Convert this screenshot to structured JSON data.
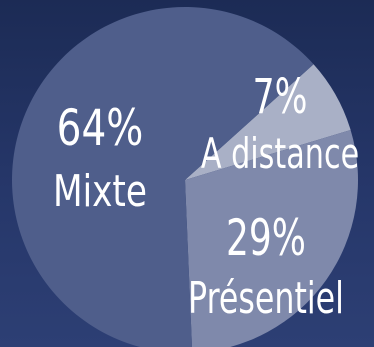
{
  "chart_data": {
    "type": "pie",
    "title": "",
    "slices": [
      {
        "label": "Mixte",
        "value": 64,
        "value_label": "64%",
        "color": "#4f5e8b"
      },
      {
        "label": "A distance",
        "value": 7,
        "value_label": "7%",
        "color": "#a9b0c6"
      },
      {
        "label": "Présentiel",
        "value": 29,
        "value_label": "29%",
        "color": "#7f89ab"
      }
    ],
    "legend": "none"
  }
}
